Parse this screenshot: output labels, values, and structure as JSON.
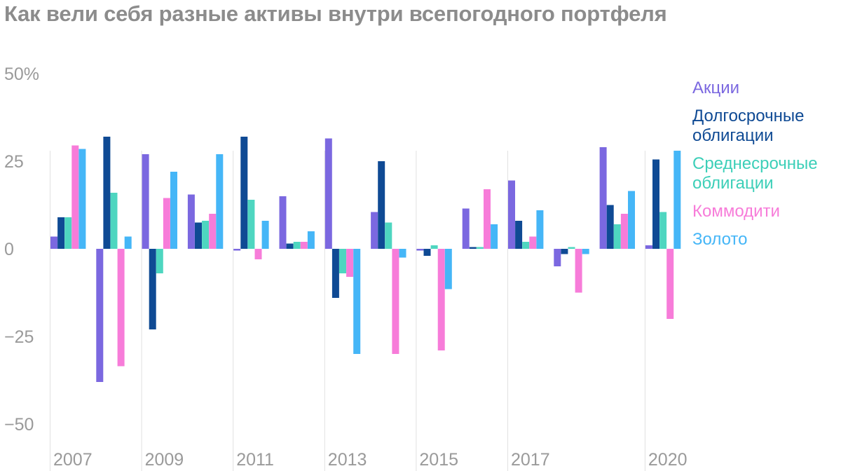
{
  "title": "Как вели себя разные активы внутри всепогодного портфеля",
  "chart_data": {
    "type": "bar",
    "title": "Как вели себя разные активы внутри всепогодного портфеля",
    "categories": [
      "2007",
      "2008",
      "2009",
      "2010",
      "2011",
      "2012",
      "2013",
      "2014",
      "2015",
      "2016",
      "2017",
      "2018",
      "2019",
      "2020"
    ],
    "x_tick_labels": [
      "2007",
      "2009",
      "2011",
      "2013",
      "2015",
      "2017",
      "2020"
    ],
    "y_ticks": [
      50,
      25,
      0,
      -25,
      -50
    ],
    "y_tick_labels": [
      "50%",
      "25",
      "0",
      "−25",
      "−50"
    ],
    "ylim": [
      -55,
      52
    ],
    "grid": "vertical lines at labeled years",
    "legend_position": "right",
    "series": [
      {
        "name": "Акции",
        "color": "#7b68e0",
        "values": [
          3.5,
          -38,
          27,
          15.5,
          -0.5,
          15,
          31.5,
          10.5,
          -0.5,
          11.5,
          19.5,
          -5,
          29,
          1
        ]
      },
      {
        "name": "Долгосрочные облигации",
        "color": "#0f4a94",
        "values": [
          9,
          32,
          -23,
          7.5,
          32,
          1.5,
          -14,
          25,
          -2,
          0.5,
          8,
          -1.5,
          12.5,
          25.5
        ]
      },
      {
        "name": "Среднесрочные облигации",
        "color": "#4ed6c0",
        "values": [
          9,
          16,
          -7,
          8,
          14,
          2,
          -7,
          7.5,
          1,
          0.5,
          2,
          0.5,
          7,
          10.5
        ]
      },
      {
        "name": "Коммодити",
        "color": "#f77cd9",
        "values": [
          29.5,
          -33.5,
          14.5,
          10,
          -3,
          2,
          -8,
          -30,
          -29,
          17,
          3.5,
          -12.5,
          10,
          -20
        ]
      },
      {
        "name": "Золото",
        "color": "#45b6f7",
        "values": [
          28.5,
          3.5,
          22,
          27,
          8,
          5,
          -30,
          -2.5,
          -11.5,
          7,
          11,
          -1.5,
          16.5,
          28
        ]
      }
    ]
  },
  "legend": [
    {
      "label_lines": [
        "Акции"
      ],
      "color": "#7b68e0"
    },
    {
      "label_lines": [
        "Долгосрочные",
        "облигации"
      ],
      "color": "#0f4a94"
    },
    {
      "label_lines": [
        "Среднесрочные",
        "облигации"
      ],
      "color": "#3ccfb8"
    },
    {
      "label_lines": [
        "Коммодити"
      ],
      "color": "#f77cd9"
    },
    {
      "label_lines": [
        "Золото"
      ],
      "color": "#45b6f7"
    }
  ]
}
